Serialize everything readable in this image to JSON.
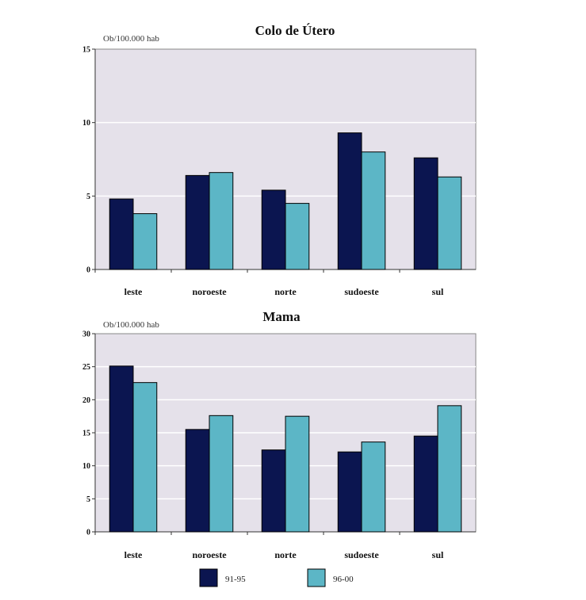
{
  "colors": {
    "series_dark": "#0b1550",
    "series_light": "#5cb6c6",
    "plot_bg": "#e5e1ea",
    "grid": "#ffffff"
  },
  "chart_data": [
    {
      "type": "bar",
      "title": "Colo de Útero",
      "unit_label": "Ob/100.000 hab",
      "xlabel": "",
      "ylabel": "",
      "ylim": [
        0,
        15
      ],
      "yticks": [
        "0",
        "5",
        "10",
        "15"
      ],
      "grid": true,
      "categories": [
        "leste",
        "noroeste",
        "norte",
        "sudoeste",
        "sul"
      ],
      "series": [
        {
          "name": "91-95",
          "values": [
            4.8,
            6.4,
            5.4,
            9.3,
            7.6
          ]
        },
        {
          "name": "96-00",
          "values": [
            3.8,
            6.6,
            4.5,
            8.0,
            6.3
          ]
        }
      ]
    },
    {
      "type": "bar",
      "title": "Mama",
      "unit_label": "Ob/100.000 hab",
      "xlabel": "",
      "ylabel": "",
      "ylim": [
        0,
        30
      ],
      "yticks": [
        "0",
        "5",
        "10",
        "15",
        "20",
        "25",
        "30"
      ],
      "grid": true,
      "categories": [
        "leste",
        "noroeste",
        "norte",
        "sudoeste",
        "sul"
      ],
      "series": [
        {
          "name": "91-95",
          "values": [
            25.1,
            15.5,
            12.4,
            12.1,
            14.5
          ]
        },
        {
          "name": "96-00",
          "values": [
            22.6,
            17.6,
            17.5,
            13.6,
            19.1
          ]
        }
      ]
    }
  ],
  "legend": {
    "position": "bottom-center",
    "items": [
      {
        "label": "91-95"
      },
      {
        "label": "96-00"
      }
    ]
  }
}
